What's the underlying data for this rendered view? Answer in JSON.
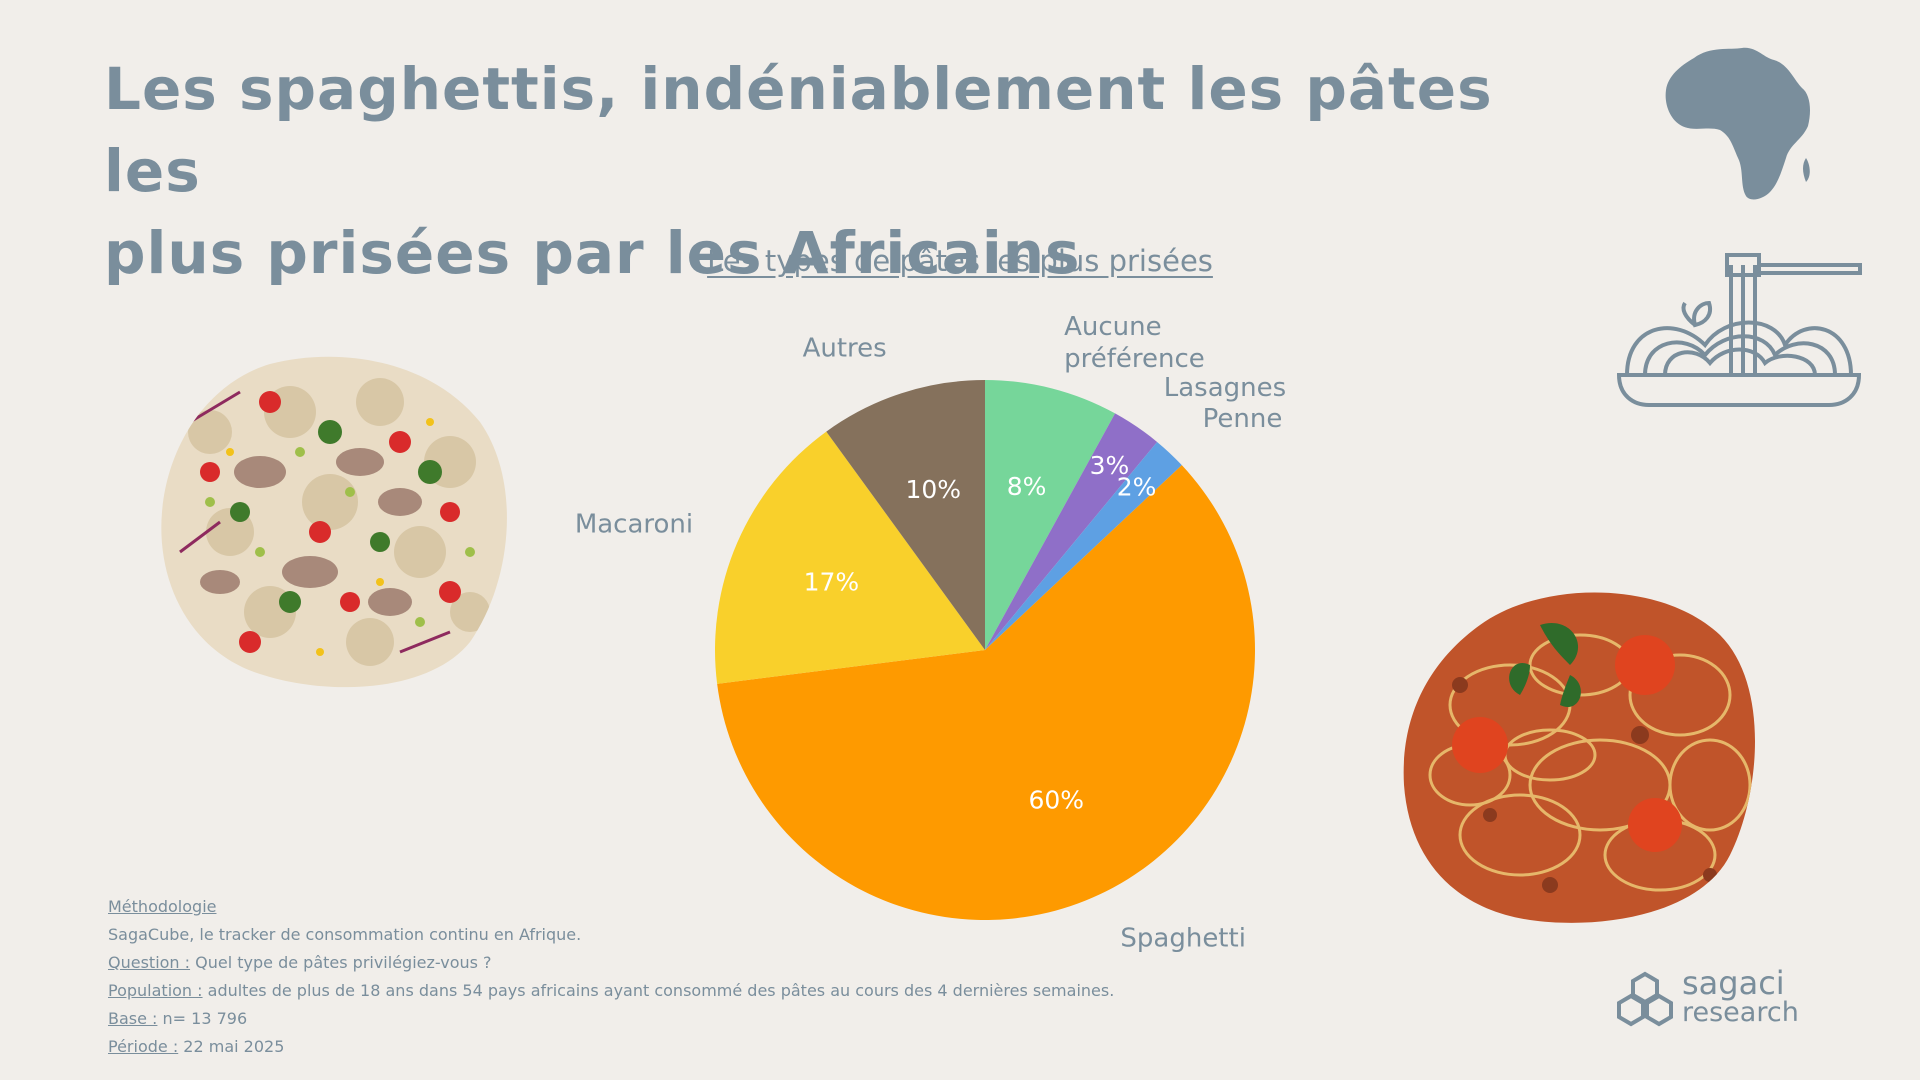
{
  "title_line1": "Les spaghettis, indéniablement les pâtes les",
  "title_line2": "plus prisées par les Africains",
  "chart_data": {
    "type": "pie",
    "title": "Les types de pâtes les plus prisées",
    "slices": [
      {
        "label": "Aucune préférence",
        "label_lines": [
          "Aucune",
          "préférence"
        ],
        "value": 8,
        "value_label": "8%",
        "color": "#76d69a"
      },
      {
        "label": "Lasagnes",
        "label_lines": [
          "Lasagnes"
        ],
        "value": 3,
        "value_label": "3%",
        "color": "#8f6fc8"
      },
      {
        "label": "Penne",
        "label_lines": [
          "Penne"
        ],
        "value": 2,
        "value_label": "2%",
        "color": "#5ea0e3"
      },
      {
        "label": "Spaghetti",
        "label_lines": [
          "Spaghetti"
        ],
        "value": 60,
        "value_label": "60%",
        "color": "#fe9a00"
      },
      {
        "label": "Macaroni",
        "label_lines": [
          "Macaroni"
        ],
        "value": 17,
        "value_label": "17%",
        "color": "#f9d02b"
      },
      {
        "label": "Autres",
        "label_lines": [
          "Autres"
        ],
        "value": 10,
        "value_label": "10%",
        "color": "#85715c"
      }
    ]
  },
  "methodology": {
    "heading": "Méthodologie",
    "line1": "SagaCube, le tracker de consommation continu en Afrique.",
    "question_key": "Question :",
    "question_val": " Quel type de pâtes privilégiez-vous ?",
    "population_key": "Population :",
    "population_val": " adultes de plus de 18 ans dans 54 pays africains ayant consommé des pâtes au cours des 4 dernières semaines.",
    "base_key": "Base :",
    "base_val": " n= 13 796",
    "period_key": "Période :",
    "period_val": " 22 mai 2025"
  },
  "logo": {
    "line1": "sagaci",
    "line2": "research"
  },
  "icons": [
    "africa-map-icon",
    "pasta-bowl-icon",
    "macaroni-salad-photo",
    "spaghetti-bolognese-photo",
    "sagaci-hexagon-logo"
  ]
}
